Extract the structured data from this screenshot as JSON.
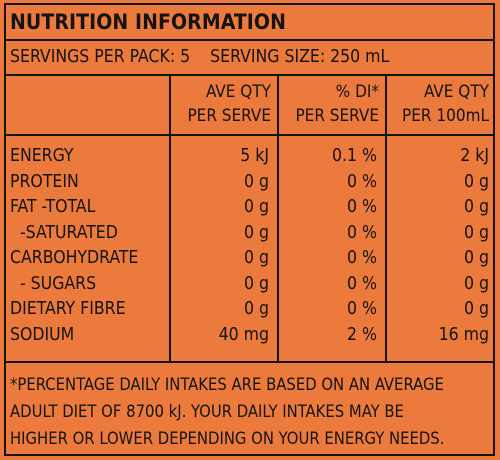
{
  "panel": {
    "title": "NUTRITION INFORMATION",
    "servings_per_pack": "SERVINGS PER PACK: 5",
    "serving_size": "SERVING SIZE: 250 mL"
  },
  "table": {
    "headers": [
      {
        "line1": "AVE QTY",
        "line2": "PER SERVE"
      },
      {
        "line1": "% DI*",
        "line2": "PER SERVE"
      },
      {
        "line1": "AVE QTY",
        "line2": "PER 100mL"
      }
    ],
    "rows": [
      {
        "label": "ENERGY",
        "per_serve": "5 kJ",
        "di": "0.1 %",
        "per_100ml": "2 kJ"
      },
      {
        "label": "PROTEIN",
        "per_serve": "0 g",
        "di": "0 %",
        "per_100ml": "0 g"
      },
      {
        "label": "FAT -TOTAL",
        "per_serve": "0 g",
        "di": "0 %",
        "per_100ml": "0 g"
      },
      {
        "label": "-SATURATED",
        "per_serve": "0 g",
        "di": "0 %",
        "per_100ml": "0 g"
      },
      {
        "label": "CARBOHYDRATE",
        "per_serve": "0 g",
        "di": "0 %",
        "per_100ml": "0 g"
      },
      {
        "label": "- SUGARS",
        "per_serve": "0 g",
        "di": "0 %",
        "per_100ml": "0 g"
      },
      {
        "label": "DIETARY FIBRE",
        "per_serve": "0 g",
        "di": "0 %",
        "per_100ml": "0 g"
      },
      {
        "label": "SODIUM",
        "per_serve": "40 mg",
        "di": "2 %",
        "per_100ml": "16 mg"
      }
    ]
  },
  "footnote": {
    "line1": "*PERCENTAGE DAILY INTAKES ARE BASED ON AN AVERAGE",
    "line2": "ADULT DIET OF 8700 kJ. YOUR DAILY INTAKES MAY BE",
    "line3": "HIGHER OR LOWER DEPENDING ON YOUR ENERGY NEEDS."
  },
  "colors": {
    "background": "#ec7a3c",
    "ink": "#141414"
  }
}
